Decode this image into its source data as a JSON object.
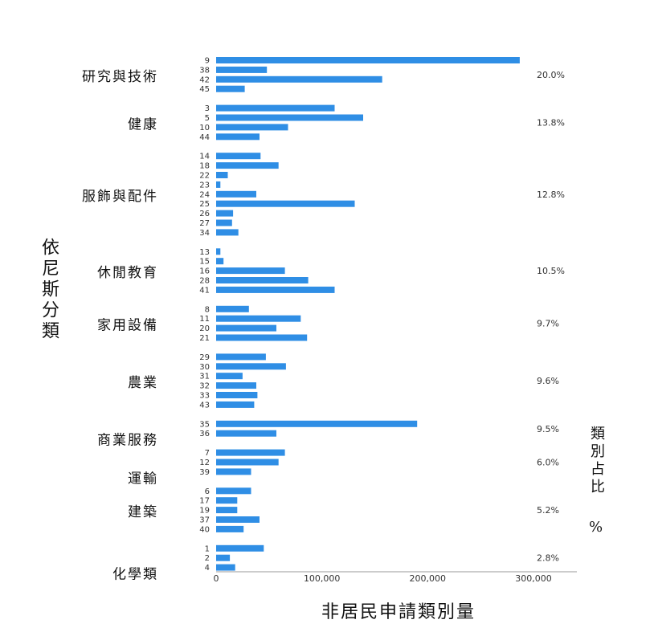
{
  "chart_data": {
    "type": "bar",
    "orientation": "horizontal",
    "xlabel": "非居民申請類別量",
    "ylabel": "依尼斯分類",
    "right_label": "類別占比",
    "right_unit": "%",
    "xlim": [
      0,
      340000
    ],
    "xticks": [
      0,
      100000,
      200000,
      300000
    ],
    "xtick_labels": [
      "0",
      "100,000",
      "200,000",
      "300,000"
    ],
    "bar_color": "#2f8ee5",
    "groups": [
      {
        "name": "研究與技術",
        "share": "20.0%",
        "classes": [
          "9",
          "38",
          "42",
          "45"
        ],
        "values": [
          287000,
          48000,
          157000,
          27000
        ]
      },
      {
        "name": "健康",
        "share": "13.8%",
        "classes": [
          "3",
          "5",
          "10",
          "44"
        ],
        "values": [
          112000,
          139000,
          68000,
          41000
        ]
      },
      {
        "name": "服飾與配件",
        "share": "12.8%",
        "classes": [
          "14",
          "18",
          "22",
          "23",
          "24",
          "25",
          "26",
          "27",
          "34"
        ],
        "values": [
          42000,
          59000,
          11000,
          4000,
          38000,
          131000,
          16000,
          15000,
          21000
        ]
      },
      {
        "name": "休閒教育",
        "share": "10.5%",
        "classes": [
          "13",
          "15",
          "16",
          "28",
          "41"
        ],
        "values": [
          4000,
          7000,
          65000,
          87000,
          112000
        ]
      },
      {
        "name": "家用設備",
        "share": "9.7%",
        "classes": [
          "8",
          "11",
          "20",
          "21"
        ],
        "values": [
          31000,
          80000,
          57000,
          86000
        ]
      },
      {
        "name": "農業",
        "share": "9.6%",
        "classes": [
          "29",
          "30",
          "31",
          "32",
          "33",
          "43"
        ],
        "values": [
          47000,
          66000,
          25000,
          38000,
          39000,
          36000
        ]
      },
      {
        "name": "商業服務",
        "share": "9.5%",
        "classes": [
          "35",
          "36"
        ],
        "values": [
          190000,
          57000
        ]
      },
      {
        "name": "運輸",
        "share": "6.0%",
        "classes": [
          "7",
          "12",
          "39"
        ],
        "values": [
          65000,
          59000,
          33000
        ]
      },
      {
        "name": "建築",
        "share": "5.2%",
        "classes": [
          "6",
          "17",
          "19",
          "37",
          "40"
        ],
        "values": [
          33000,
          20000,
          20000,
          41000,
          26000
        ]
      },
      {
        "name": "化學類",
        "share": "2.8%",
        "classes": [
          "1",
          "2",
          "4"
        ],
        "values": [
          45000,
          13000,
          18000
        ]
      }
    ]
  }
}
